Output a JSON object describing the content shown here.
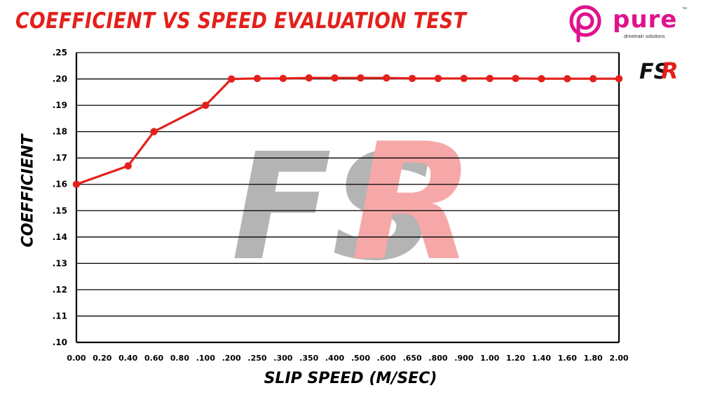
{
  "header": {
    "title": "COEFFICIENT VS SPEED EVALUATION TEST"
  },
  "brand": {
    "pure_word": "pure",
    "pure_tm": "™",
    "pure_tagline": "drivetrain solutions",
    "fsr_mark": "FSR",
    "accent_color": "#e0128c"
  },
  "chart_data": {
    "type": "line",
    "title": "COEFFICIENT VS SPEED EVALUATION TEST",
    "xlabel": "SLIP SPEED (M/SEC)",
    "ylabel": "COEFFICIENT",
    "categories": [
      "0.00",
      "0.20",
      "0.40",
      "0.60",
      "0.80",
      ".100",
      ".200",
      ".250",
      ".300",
      ".350",
      ".400",
      ".500",
      ".600",
      ".650",
      ".800",
      ".900",
      "1.00",
      "1.20",
      "1.40",
      "1.60",
      "1.80",
      "2.00"
    ],
    "y_ticks": [
      ".10",
      ".11",
      ".12",
      ".13",
      ".14",
      ".15",
      ".16",
      ".17",
      ".18",
      ".19",
      ".20",
      ".25"
    ],
    "series": [
      {
        "points": [
          {
            "x": "0.00",
            "y": 0.16
          },
          {
            "x": "0.40",
            "y": 0.167
          },
          {
            "x": "0.60",
            "y": 0.18
          },
          {
            "x": ".100",
            "y": 0.19
          },
          {
            "x": ".200",
            "y": 0.2
          },
          {
            "x": ".250",
            "y": 0.201
          },
          {
            "x": ".300",
            "y": 0.201
          },
          {
            "x": ".350",
            "y": 0.202
          },
          {
            "x": ".400",
            "y": 0.202
          },
          {
            "x": ".500",
            "y": 0.202
          },
          {
            "x": ".600",
            "y": 0.202
          },
          {
            "x": ".650",
            "y": 0.201
          },
          {
            "x": ".800",
            "y": 0.201
          },
          {
            "x": ".900",
            "y": 0.201
          },
          {
            "x": "1.00",
            "y": 0.201
          },
          {
            "x": "1.20",
            "y": 0.201
          },
          {
            "x": "1.40",
            "y": 0.2005
          },
          {
            "x": "1.60",
            "y": 0.2005
          },
          {
            "x": "1.80",
            "y": 0.2005
          },
          {
            "x": "2.00",
            "y": 0.2005
          }
        ],
        "color": "#e3201b"
      }
    ],
    "grid": true,
    "legend": "none",
    "line_color": "#e3201b",
    "watermark": "FSR"
  }
}
